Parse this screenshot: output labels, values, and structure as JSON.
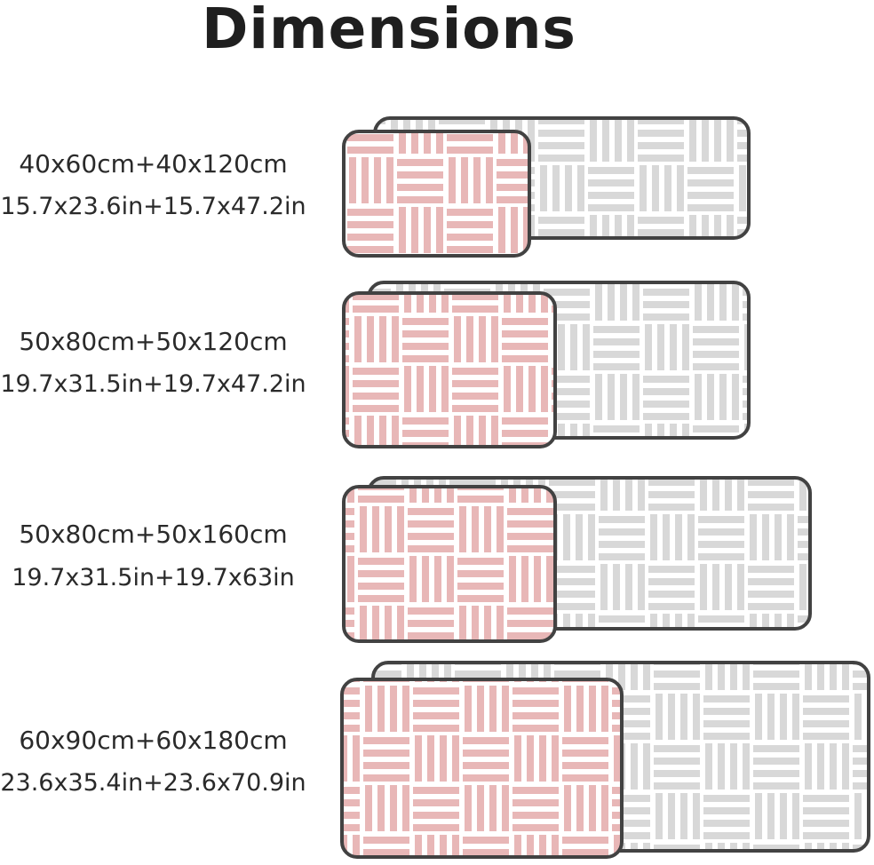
{
  "title": "Dimensions",
  "colors": {
    "pink_stripe": "#e8b7b7",
    "gray_stripe": "#d8d8d8",
    "mat_border": "#424242",
    "mat_fill": "#ffffff",
    "text": "#2a2a2a",
    "background": "#ffffff"
  },
  "rows": [
    {
      "cm": "40x60cm+40x120cm",
      "inches": "15.7x23.6in+15.7x47.2in"
    },
    {
      "cm": "50x80cm+50x120cm",
      "inches": "19.7x31.5in+19.7x47.2in"
    },
    {
      "cm": "50x80cm+50x160cm",
      "inches": "19.7x31.5in+19.7x63in"
    },
    {
      "cm": "60x90cm+60x180cm",
      "inches": "23.6x35.4in+23.6x70.9in"
    }
  ]
}
